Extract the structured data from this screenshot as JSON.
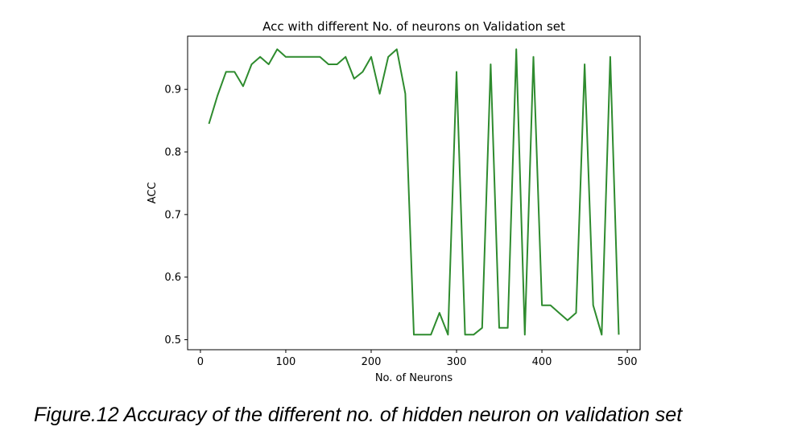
{
  "chart_data": {
    "type": "line",
    "title": "Acc with different No. of neurons on Validation set",
    "xlabel": "No. of Neurons",
    "ylabel": "ACC",
    "xlim": [
      -15,
      515
    ],
    "ylim": [
      0.484,
      0.985
    ],
    "x_ticks": [
      0,
      100,
      200,
      300,
      400,
      500
    ],
    "y_ticks": [
      0.5,
      0.6,
      0.7,
      0.8,
      0.9
    ],
    "x_tick_labels": [
      "0",
      "100",
      "200",
      "300",
      "400",
      "500"
    ],
    "y_tick_labels": [
      "0.5",
      "0.6",
      "0.7",
      "0.8",
      "0.9"
    ],
    "grid": false,
    "line_color": "#2e8b2e",
    "series": [
      {
        "x": [
          10,
          20,
          30,
          40,
          50,
          60,
          70,
          80,
          90,
          100,
          110,
          120,
          130,
          140,
          150,
          160,
          170,
          180,
          190,
          200,
          210,
          220,
          230,
          240,
          250,
          260,
          270,
          280,
          290,
          300,
          310,
          320,
          330,
          340,
          350,
          360,
          370,
          380,
          390,
          400,
          410,
          420,
          430,
          440,
          450,
          460,
          470,
          480,
          490
        ],
        "values": [
          0.845,
          0.89,
          0.928,
          0.928,
          0.905,
          0.94,
          0.952,
          0.94,
          0.964,
          0.952,
          0.952,
          0.952,
          0.952,
          0.952,
          0.94,
          0.94,
          0.952,
          0.917,
          0.928,
          0.952,
          0.893,
          0.952,
          0.964,
          0.893,
          0.508,
          0.508,
          0.508,
          0.543,
          0.508,
          0.928,
          0.508,
          0.508,
          0.519,
          0.94,
          0.519,
          0.519,
          0.964,
          0.508,
          0.952,
          0.555,
          0.555,
          0.543,
          0.531,
          0.543,
          0.94,
          0.555,
          0.508,
          0.952,
          0.508
        ]
      }
    ]
  },
  "caption": "Figure.12 Accuracy of the different no. of hidden neuron on validation set"
}
